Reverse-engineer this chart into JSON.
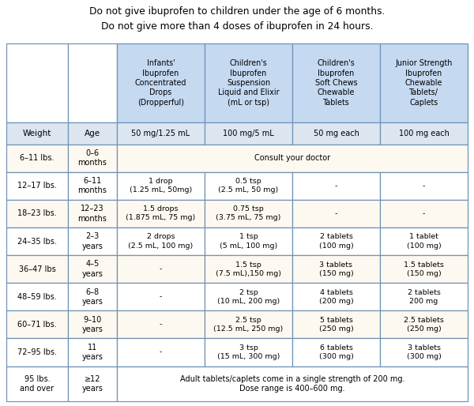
{
  "title_line1": "Do not give ibuprofen to children under the age of 6 months.",
  "title_line2": "Do not give more than 4 doses of ibuprofen in 24 hours.",
  "col_headers_top": [
    "Infants'\nIbuprofen\nConcentrated\nDrops\n(Dropperful)",
    "Children's\nIbuprofen\nSuspension\nLiquid and Elixir\n(mL or tsp)",
    "Children's\nIbuprofen\nSoft Chews\nChewable\nTablets",
    "Junior Strength\nIbuprofen\nChewable\nTablets/\nCaplets"
  ],
  "col_headers_sub": [
    "50 mg/1.25 mL",
    "100 mg/5 mL",
    "50 mg each",
    "100 mg each"
  ],
  "rows": [
    {
      "weight": "6–11 lbs.",
      "age": "0–6\nmonths",
      "cells": [
        "Consult your doctor",
        "",
        "",
        ""
      ],
      "span": true,
      "bg": "#fef9f0"
    },
    {
      "weight": "12–17 lbs.",
      "age": "6–11\nmonths",
      "cells": [
        "1 drop\n(1.25 mL, 50mg)",
        "0.5 tsp\n(2.5 mL, 50 mg)",
        "-",
        "-"
      ],
      "span": false,
      "bg": "white"
    },
    {
      "weight": "18–23 lbs.",
      "age": "12–23\nmonths",
      "cells": [
        "1.5 drops\n(1.875 mL, 75 mg)",
        "0.75 tsp\n(3.75 mL, 75 mg)",
        "-",
        "-"
      ],
      "span": false,
      "bg": "#fef9f0"
    },
    {
      "weight": "24–35 lbs.",
      "age": "2–3\nyears",
      "cells": [
        "2 drops\n(2.5 mL, 100 mg)",
        "1 tsp\n(5 mL, 100 mg)",
        "2 tablets\n(100 mg)",
        "1 tablet\n(100 mg)"
      ],
      "span": false,
      "bg": "white"
    },
    {
      "weight": "36–47 lbs",
      "age": "4–5\nyears",
      "cells": [
        "-",
        "1.5 tsp\n(7.5 mL),150 mg)",
        "3 tablets\n(150 mg)",
        "1.5 tablets\n(150 mg)"
      ],
      "span": false,
      "bg": "#fef9f0"
    },
    {
      "weight": "48–59 lbs.",
      "age": "6–8\nyears",
      "cells": [
        "-",
        "2 tsp\n(10 mL, 200 mg)",
        "4 tablets\n(200 mg)",
        "2 tablets\n200 mg"
      ],
      "span": false,
      "bg": "white"
    },
    {
      "weight": "60–71 lbs.",
      "age": "9–10\nyears",
      "cells": [
        "-",
        "2.5 tsp\n(12.5 mL, 250 mg)",
        "5 tablets\n(250 mg)",
        "2.5 tablets\n(250 mg)"
      ],
      "span": false,
      "bg": "#fef9f0"
    },
    {
      "weight": "72–95 lbs.",
      "age": "11\nyears",
      "cells": [
        "-",
        "3 tsp\n(15 mL, 300 mg)",
        "6 tablets\n(300 mg)",
        "3 tablets\n(300 mg)"
      ],
      "span": false,
      "bg": "white"
    },
    {
      "weight": "95 lbs.\nand over",
      "age": "≥12\nyears",
      "cells": [
        "Adult tablets/caplets come in a single strength of 200 mg.\nDose range is 400–600 mg.",
        "",
        "",
        ""
      ],
      "span": true,
      "bg": "white"
    }
  ],
  "header_bg": "#c5d9f1",
  "subheader_bg": "#dce6f1",
  "border_color": "#7094b8",
  "fig_bg": "white",
  "title_fontsize": 8.8,
  "cell_fontsize": 7.0,
  "header_fontsize": 6.9
}
